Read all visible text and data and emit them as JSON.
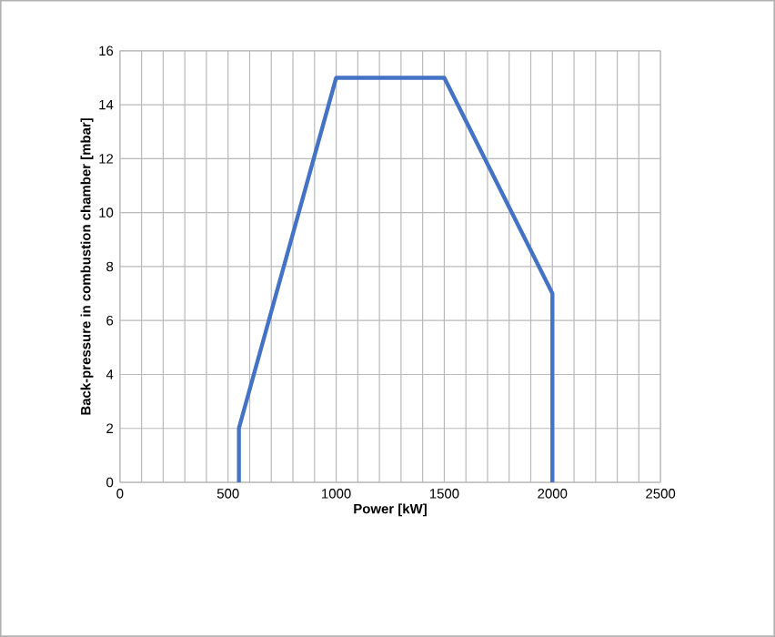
{
  "chart_data": {
    "type": "line",
    "xlabel": "Power [kW]",
    "ylabel": "Back-pressure in combustion chamber [mbar]",
    "x": [
      550,
      550,
      1000,
      1500,
      2000,
      2000
    ],
    "series": [
      {
        "color": "#4472c4",
        "values": [
          0,
          2,
          15,
          15,
          7,
          0
        ]
      }
    ],
    "xlim": [
      0,
      2500
    ],
    "ylim": [
      0,
      16
    ],
    "xticks": [
      0,
      {
        "value": 100,
        "label": null
      },
      {
        "value": 200,
        "label": null
      },
      {
        "value": 300,
        "label": null
      },
      {
        "value": 400,
        "label": null
      },
      500,
      {
        "value": 600,
        "label": null
      },
      {
        "value": 700,
        "label": null
      },
      {
        "value": 800,
        "label": null
      },
      {
        "value": 900,
        "label": null
      },
      1000,
      {
        "value": 1100,
        "label": null
      },
      {
        "value": 1200,
        "label": null
      },
      {
        "value": 1300,
        "label": null
      },
      {
        "value": 1400,
        "label": null
      },
      1500,
      {
        "value": 1600,
        "label": null
      },
      {
        "value": 1700,
        "label": null
      },
      {
        "value": 1800,
        "label": null
      },
      {
        "value": 1900,
        "label": null
      },
      2000,
      {
        "value": 2100,
        "label": null
      },
      {
        "value": 2200,
        "label": null
      },
      {
        "value": 2300,
        "label": null
      },
      {
        "value": 2400,
        "label": null
      },
      2500
    ],
    "yticks": [
      0,
      2,
      4,
      6,
      8,
      10,
      12,
      14,
      16
    ],
    "grid": true,
    "marker": "none",
    "line_style": "solid"
  }
}
